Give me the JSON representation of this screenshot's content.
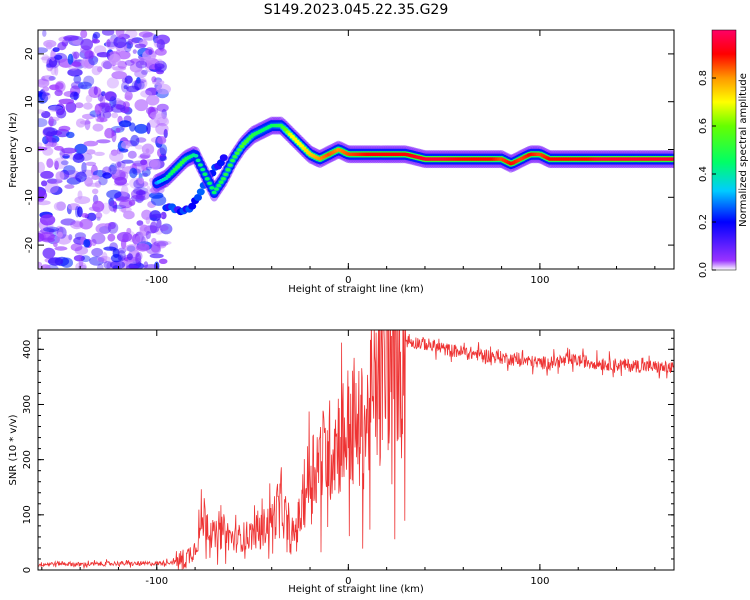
{
  "title": "S149.2023.045.22.35.G29",
  "chart_data": [
    {
      "type": "heatmap",
      "xlabel": "Height of straight line (km)",
      "ylabel": "Frequency (Hz)",
      "xlim": [
        -162,
        170
      ],
      "ylim": [
        -25,
        25
      ],
      "x_ticks": [
        -100,
        0,
        100
      ],
      "y_ticks": [
        -20,
        -10,
        0,
        10,
        20
      ],
      "colorbar": {
        "label": "Normalized spectral amplitude",
        "range": [
          0,
          1
        ],
        "ticks": [
          "0.0",
          "0.2",
          "0.4",
          "0.6",
          "0.8"
        ],
        "tick_values": [
          0,
          0.2,
          0.4,
          0.6,
          0.8
        ]
      },
      "ridge": {
        "x": [
          -100,
          -95,
          -90,
          -85,
          -80,
          -75,
          -70,
          -65,
          -60,
          -55,
          -50,
          -45,
          -40,
          -35,
          -30,
          -25,
          -20,
          -15,
          -10,
          -5,
          0,
          10,
          20,
          30,
          40,
          50,
          60,
          70,
          75,
          80,
          85,
          90,
          95,
          100,
          105,
          110,
          115,
          120,
          125,
          130,
          140,
          150,
          160,
          170
        ],
        "y": [
          -7,
          -6,
          -4,
          -2,
          -1,
          -5,
          -9,
          -6,
          -2,
          1,
          3,
          4,
          5,
          5,
          3,
          1,
          -1,
          -2,
          -1,
          0,
          -1,
          -1,
          -1,
          -1,
          -2,
          -2,
          -2,
          -2,
          -2,
          -2,
          -3,
          -2,
          -1,
          -1,
          -2,
          -2,
          -2,
          -2,
          -2,
          -2,
          -2,
          -2,
          -2,
          -2
        ],
        "amplitude": [
          0.3,
          0.4,
          0.5,
          0.5,
          0.4,
          0.45,
          0.45,
          0.5,
          0.5,
          0.55,
          0.5,
          0.45,
          0.45,
          0.5,
          0.7,
          0.7,
          0.75,
          0.8,
          0.85,
          0.8,
          0.85,
          0.9,
          0.9,
          0.9,
          0.95,
          0.95,
          0.9,
          0.9,
          0.9,
          0.85,
          0.9,
          0.85,
          0.9,
          0.85,
          0.9,
          0.9,
          0.9,
          0.9,
          0.9,
          0.95,
          0.95,
          0.95,
          0.95,
          0.95
        ]
      },
      "secondary_branch": {
        "x": [
          -95,
          -85,
          -80,
          -75,
          -70,
          -65
        ],
        "y": [
          -12,
          -13,
          -11,
          -7,
          -4,
          -2
        ]
      },
      "noise_region_x": [
        -162,
        -95
      ]
    },
    {
      "type": "line",
      "xlabel": "Height of straight line (km)",
      "ylabel": "SNR (10 * v/v)",
      "xlim": [
        -162,
        170
      ],
      "ylim": [
        0,
        435
      ],
      "x_ticks": [
        -100,
        0,
        100
      ],
      "y_ticks": [
        0,
        100,
        200,
        300,
        400
      ],
      "line_color": "#ee3333",
      "series": [
        {
          "x": [
            -162,
            -150,
            -140,
            -130,
            -120,
            -110,
            -100,
            -90,
            -85,
            -80,
            -75,
            -70,
            -65,
            -60,
            -55,
            -50,
            -45,
            -40,
            -35,
            -30,
            -25,
            -20,
            -15,
            -10,
            -5,
            0,
            5,
            10,
            15,
            20,
            25,
            30,
            40,
            50,
            60,
            70,
            80,
            90,
            100,
            110,
            120,
            130,
            140,
            150,
            160,
            170
          ],
          "y": [
            10,
            12,
            10,
            11,
            12,
            11,
            12,
            15,
            20,
            40,
            100,
            60,
            70,
            55,
            60,
            65,
            75,
            90,
            120,
            50,
            100,
            180,
            200,
            215,
            240,
            260,
            250,
            270,
            330,
            370,
            400,
            415,
            410,
            400,
            395,
            390,
            385,
            380,
            375,
            378,
            380,
            375,
            372,
            370,
            368,
            365
          ]
        }
      ]
    }
  ]
}
